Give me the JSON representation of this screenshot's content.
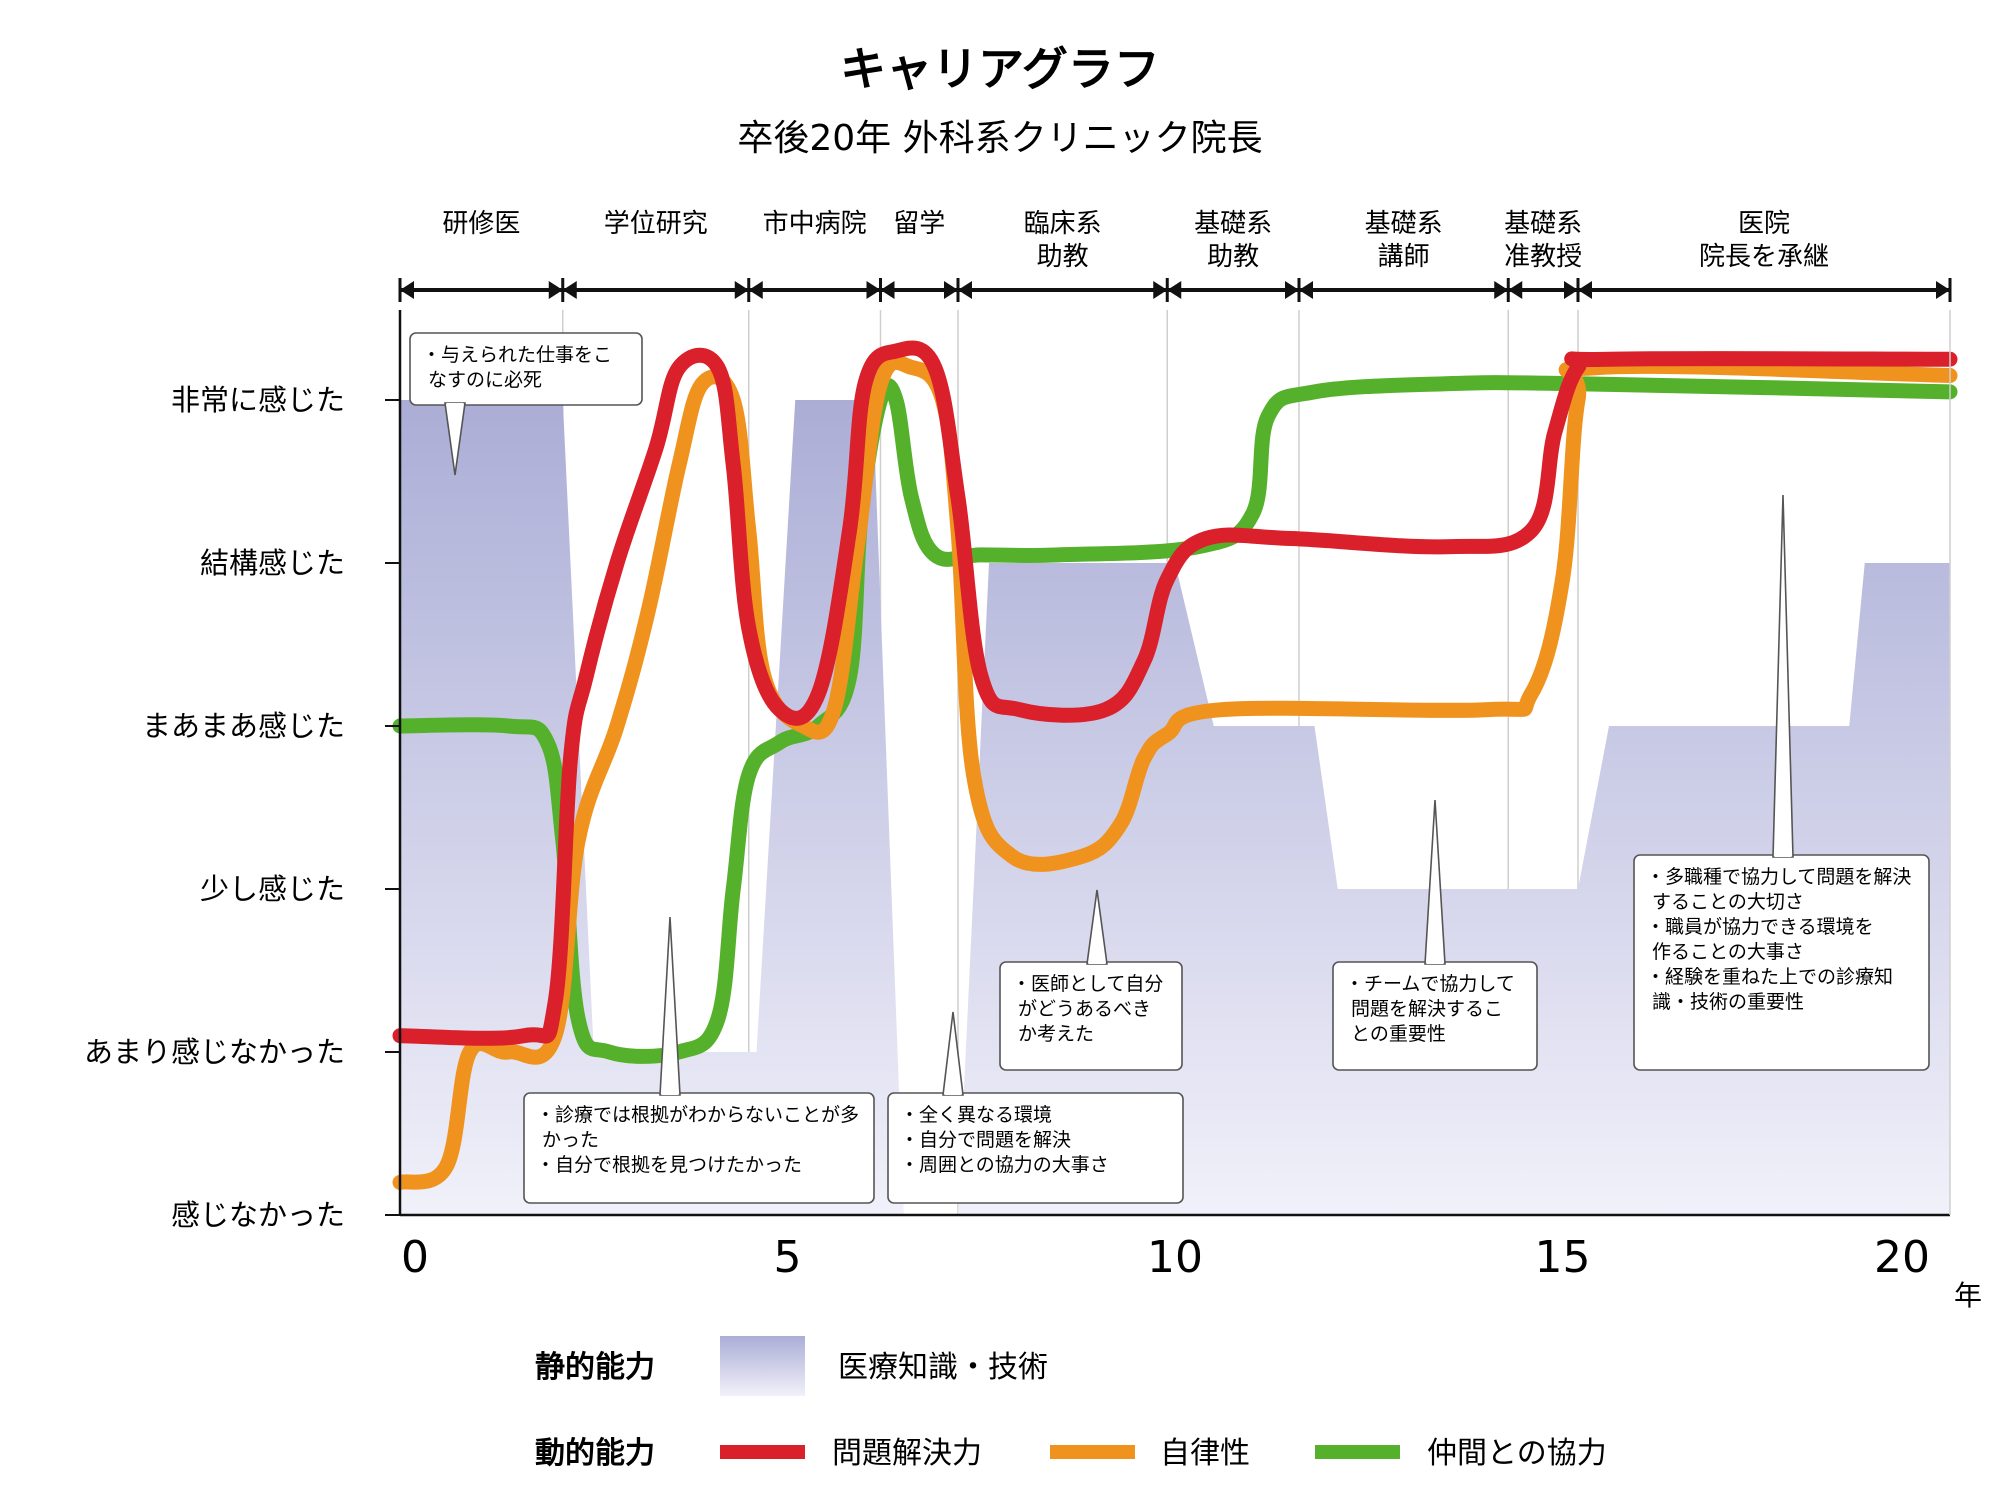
{
  "chart_data": {
    "type": "line",
    "title": "キャリアグラフ",
    "subtitle": "卒後20年 外科系クリニック院長",
    "x_unit": "年",
    "xlim": [
      0,
      20
    ],
    "x_ticks": [
      0,
      5,
      10,
      15,
      20
    ],
    "y_levels": [
      "感じなかった",
      "あまり感じなかった",
      "少し感じた",
      "まあまあ感じた",
      "結構感じた",
      "非常に感じた"
    ],
    "ylim": [
      0,
      5
    ],
    "phases": [
      {
        "label": "研修医",
        "start": 0,
        "end": 2.1
      },
      {
        "label": "学位研究",
        "start": 2.1,
        "end": 4.5
      },
      {
        "label": "市中病院",
        "start": 4.5,
        "end": 6.2
      },
      {
        "label": "留学",
        "start": 6.2,
        "end": 7.2
      },
      {
        "label": "臨床系\n助教",
        "start": 7.2,
        "end": 9.9
      },
      {
        "label": "基礎系\n助教",
        "start": 9.9,
        "end": 11.6
      },
      {
        "label": "基礎系\n講師",
        "start": 11.6,
        "end": 14.3
      },
      {
        "label": "基礎系\n准教授",
        "start": 14.3,
        "end": 15.2
      },
      {
        "label": "医院\n院長を承継",
        "start": 15.2,
        "end": 20
      }
    ],
    "area": {
      "name": "医療知識・技術",
      "points": [
        [
          0,
          5
        ],
        [
          2.1,
          5
        ],
        [
          2.5,
          1
        ],
        [
          4.6,
          1
        ],
        [
          5.1,
          5
        ],
        [
          6.1,
          5
        ],
        [
          6.5,
          0
        ],
        [
          7.2,
          0
        ],
        [
          7.6,
          4
        ],
        [
          10,
          4
        ],
        [
          10.5,
          3
        ],
        [
          11.8,
          3
        ],
        [
          12.1,
          2
        ],
        [
          15.2,
          2
        ],
        [
          15.6,
          3
        ],
        [
          18.7,
          3
        ],
        [
          18.9,
          4
        ],
        [
          20,
          4
        ],
        [
          20,
          0
        ],
        [
          0,
          0
        ]
      ]
    },
    "series": [
      {
        "name": "問題解決力",
        "color": "#d9202b",
        "points": [
          [
            0,
            1.1
          ],
          [
            1.6,
            1.1
          ],
          [
            2.0,
            1.3
          ],
          [
            2.2,
            2.8
          ],
          [
            2.4,
            3.3
          ],
          [
            2.8,
            4
          ],
          [
            3.3,
            4.7
          ],
          [
            3.6,
            5.2
          ],
          [
            4.1,
            5.2
          ],
          [
            4.3,
            4.6
          ],
          [
            4.5,
            3.6
          ],
          [
            4.9,
            3.1
          ],
          [
            5.4,
            3.2
          ],
          [
            5.8,
            4.2
          ],
          [
            6.0,
            5.1
          ],
          [
            6.4,
            5.3
          ],
          [
            6.9,
            5.2
          ],
          [
            7.2,
            4.4
          ],
          [
            7.5,
            3.3
          ],
          [
            8.0,
            3.1
          ],
          [
            9.1,
            3.1
          ],
          [
            9.6,
            3.4
          ],
          [
            9.9,
            3.9
          ],
          [
            10.4,
            4.15
          ],
          [
            11.5,
            4.15
          ],
          [
            13.5,
            4.1
          ],
          [
            14.6,
            4.2
          ],
          [
            14.9,
            4.8
          ],
          [
            15.2,
            5.2
          ],
          [
            15.6,
            5.25
          ],
          [
            20,
            5.25
          ]
        ]
      },
      {
        "name": "自律性",
        "color": "#f0931e",
        "points": [
          [
            0,
            0.2
          ],
          [
            0.6,
            0.3
          ],
          [
            0.9,
            1.0
          ],
          [
            1.4,
            1.0
          ],
          [
            2.0,
            1.1
          ],
          [
            2.3,
            2.3
          ],
          [
            2.8,
            3.0
          ],
          [
            3.2,
            3.7
          ],
          [
            3.6,
            4.6
          ],
          [
            3.9,
            5.1
          ],
          [
            4.3,
            5.0
          ],
          [
            4.5,
            4.2
          ],
          [
            4.7,
            3.3
          ],
          [
            5.2,
            3.0
          ],
          [
            5.6,
            3.1
          ],
          [
            5.9,
            4.1
          ],
          [
            6.2,
            5.1
          ],
          [
            6.6,
            5.2
          ],
          [
            7.0,
            5.0
          ],
          [
            7.2,
            4.2
          ],
          [
            7.4,
            2.7
          ],
          [
            7.9,
            2.2
          ],
          [
            8.8,
            2.2
          ],
          [
            9.3,
            2.4
          ],
          [
            9.6,
            2.8
          ],
          [
            9.9,
            2.95
          ],
          [
            10.6,
            3.1
          ],
          [
            14.0,
            3.1
          ],
          [
            14.6,
            3.2
          ],
          [
            15.0,
            3.9
          ],
          [
            15.2,
            5.0
          ],
          [
            15.5,
            5.2
          ],
          [
            20,
            5.15
          ]
        ]
      },
      {
        "name": "仲間との協力",
        "color": "#55b12b",
        "points": [
          [
            0,
            3.0
          ],
          [
            1.4,
            3.0
          ],
          [
            1.9,
            2.9
          ],
          [
            2.1,
            2.3
          ],
          [
            2.3,
            1.2
          ],
          [
            2.7,
            1.0
          ],
          [
            3.6,
            1.0
          ],
          [
            4.1,
            1.2
          ],
          [
            4.3,
            2.0
          ],
          [
            4.5,
            2.7
          ],
          [
            4.9,
            2.9
          ],
          [
            5.4,
            3.0
          ],
          [
            5.8,
            3.3
          ],
          [
            5.95,
            4.3
          ],
          [
            6.2,
            5.0
          ],
          [
            6.4,
            5.0
          ],
          [
            6.6,
            4.4
          ],
          [
            6.9,
            4.05
          ],
          [
            7.5,
            4.05
          ],
          [
            8.5,
            4.05
          ],
          [
            10.3,
            4.1
          ],
          [
            11.0,
            4.3
          ],
          [
            11.2,
            4.9
          ],
          [
            11.8,
            5.05
          ],
          [
            13.5,
            5.1
          ],
          [
            15.2,
            5.1
          ],
          [
            20,
            5.05
          ]
        ]
      }
    ],
    "legend": {
      "static_label": "静的能力",
      "dynamic_label": "動的能力",
      "placement": "bottom"
    }
  },
  "annotations": [
    {
      "lines": [
        "・与えられた仕事をこ",
        "  なすのに必死"
      ]
    },
    {
      "lines": [
        "・診療では根拠がわからないことが多",
        "  かった",
        "・自分で根拠を見つけたかった"
      ]
    },
    {
      "lines": [
        "・全く異なる環境",
        "・自分で問題を解決",
        "・周囲との協力の大事さ"
      ]
    },
    {
      "lines": [
        "・医師として自分",
        "  がどうあるべき",
        "  か考えた"
      ]
    },
    {
      "lines": [
        "・チームで協力して",
        "  問題を解決するこ",
        "  との重要性"
      ]
    },
    {
      "lines": [
        "・多職種で協力して問題を解決",
        "  することの大切さ",
        "・職員が協力できる環境を",
        "  作ることの大事さ",
        "・経験を重ねた上での診療知",
        "  識・技術の重要性"
      ]
    }
  ],
  "colors": {
    "area_top": "#abadd6",
    "area_bottom": "#f1f1fa",
    "axis": "#111111",
    "grid": "#cfcfcf"
  }
}
